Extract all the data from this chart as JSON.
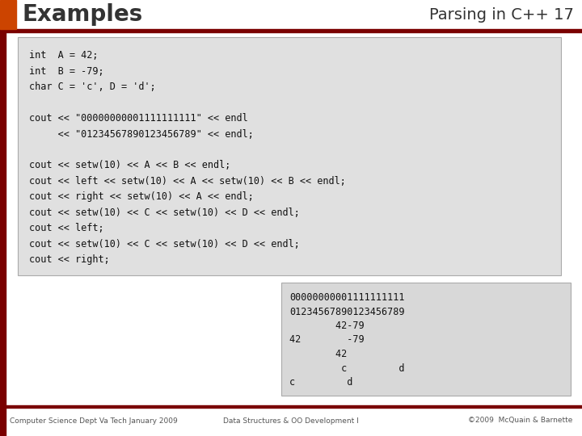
{
  "title": "Examples",
  "subtitle": "Parsing in C++ 17",
  "title_color": "#333333",
  "orange_rect_color": "#CC4400",
  "dark_red_color": "#7A0000",
  "bg_color": "#FFFFFF",
  "code_bg": "#E0E0E0",
  "output_bg": "#D8D8D8",
  "code_lines": [
    "int  A = 42;",
    "int  B = -79;",
    "char C = 'c', D = 'd';",
    "",
    "cout << \"00000000001111111111\" << endl",
    "     << \"01234567890123456789\" << endl;",
    "",
    "cout << setw(10) << A << B << endl;",
    "cout << left << setw(10) << A << setw(10) << B << endl;",
    "cout << right << setw(10) << A << endl;",
    "cout << setw(10) << C << setw(10) << D << endl;",
    "cout << left;",
    "cout << setw(10) << C << setw(10) << D << endl;",
    "cout << right;"
  ],
  "output_lines": [
    "00000000001111111111",
    "01234567890123456789",
    "        42-79",
    "42        -79      ",
    "        42",
    "         c         d",
    "c         d"
  ],
  "footer_left": "Computer Science Dept Va Tech January 2009",
  "footer_center": "Data Structures & OO Development I",
  "footer_right": "©2009  McQuain & Barnette"
}
